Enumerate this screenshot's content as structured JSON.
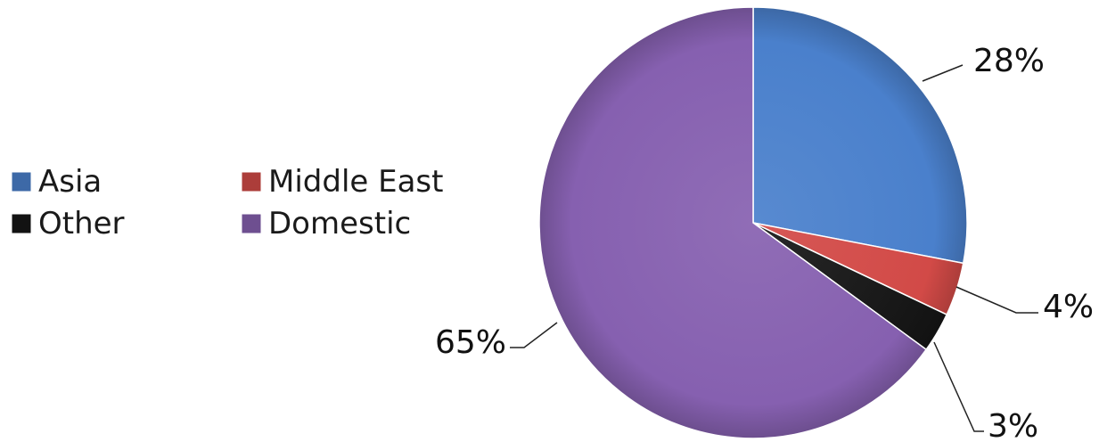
{
  "chart_data": {
    "type": "pie",
    "title": "",
    "legend_position": "left",
    "slices": [
      {
        "label": "Asia",
        "value": 28,
        "display": "28%",
        "color": "#4a80cc"
      },
      {
        "label": "Middle East",
        "value": 4,
        "display": "4%",
        "color": "#d24a47"
      },
      {
        "label": "Other",
        "value": 3,
        "display": "3%",
        "color": "#161616"
      },
      {
        "label": "Domestic",
        "value": 65,
        "display": "65%",
        "color": "#8660b0"
      }
    ],
    "legend_order": [
      "Asia",
      "Middle East",
      "Other",
      "Domestic"
    ]
  }
}
